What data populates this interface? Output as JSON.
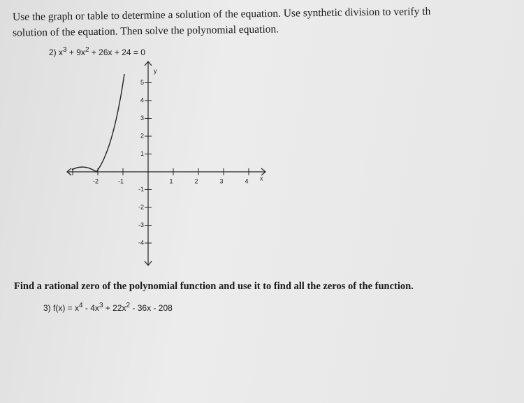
{
  "instructions": {
    "lines": [
      "Use the graph or table to determine a solution of the equation. Use synthetic division to verify th",
      "solution of the equation. Then solve the polynomial equation."
    ]
  },
  "problem2": {
    "number": "2)",
    "equation": [
      "x",
      "3",
      " + 9x",
      "2",
      " + 26x + 24 = 0"
    ],
    "graph": {
      "x_axis_label": "x",
      "y_axis_label": "y",
      "x_tick_labels": [
        "-2",
        "-1",
        "1",
        "2",
        "3",
        "4"
      ],
      "y_tick_labels": [
        "5",
        "4",
        "3",
        "2",
        "1",
        "-1",
        "-2",
        "-3",
        "-4"
      ]
    }
  },
  "problem3": {
    "heading": "Find a rational zero of the polynomial function and use it to find all the zeros of the function.",
    "number": "3)",
    "equation": [
      "f(x) = x",
      "4",
      " - 4x",
      "3",
      " + 22x",
      "2",
      " - 36x - 208"
    ]
  }
}
